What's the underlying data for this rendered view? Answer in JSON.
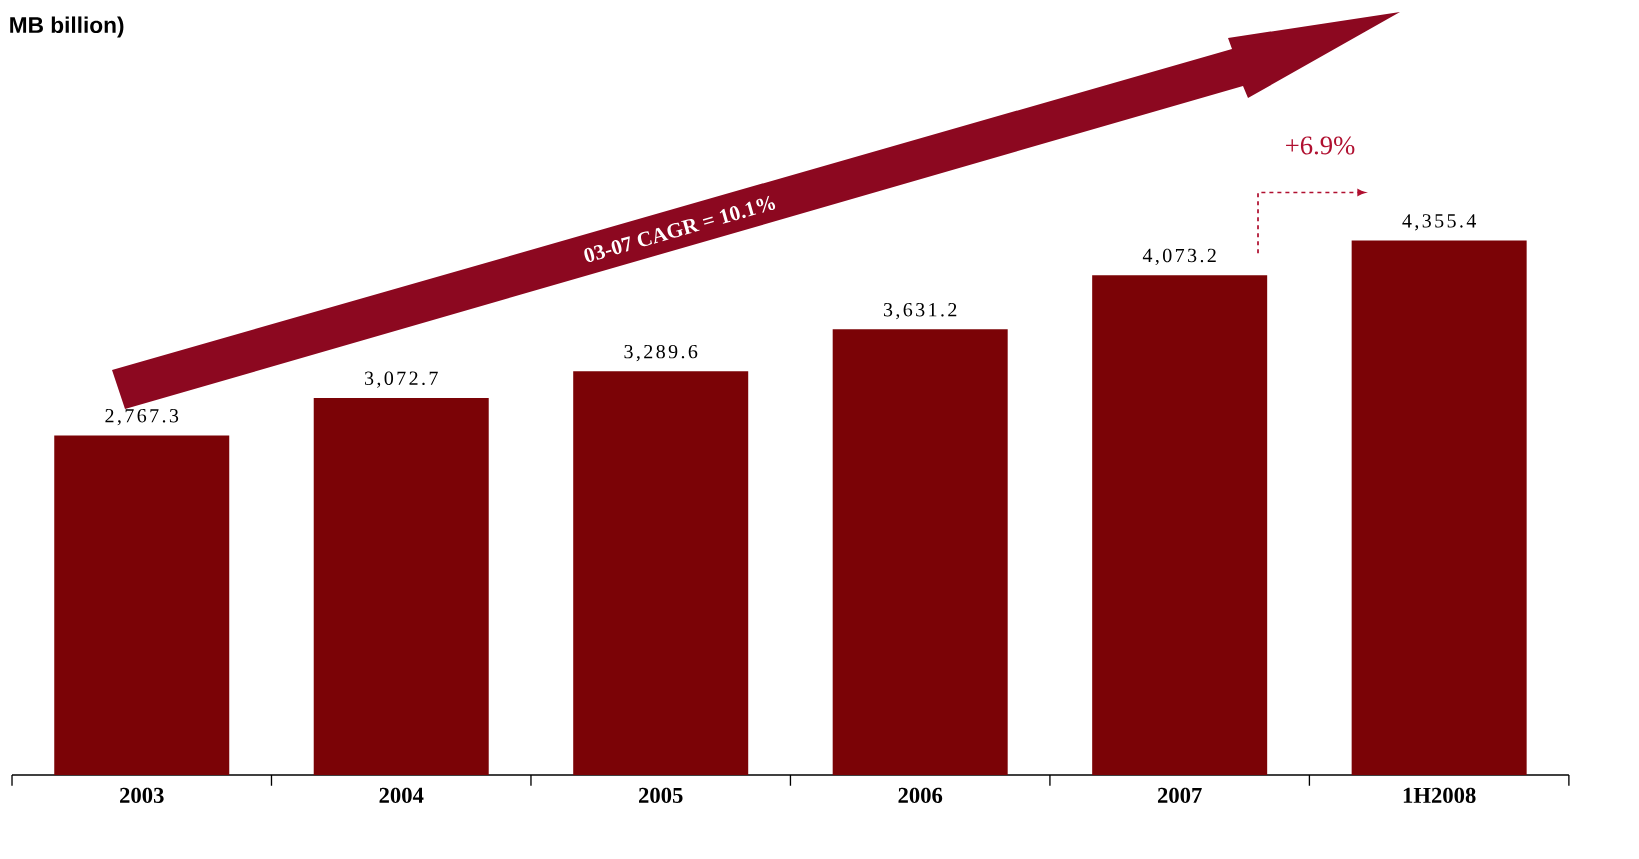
{
  "chart_data": {
    "type": "bar",
    "title": "MB billion)",
    "categories": [
      "2003",
      "2004",
      "2005",
      "2006",
      "2007",
      "1H2008"
    ],
    "values": [
      2767.3,
      3072.7,
      3289.6,
      3631.2,
      4073.2,
      4355.4
    ],
    "value_labels": [
      "2,767.3",
      "3,072.7",
      "3,289.6",
      "3,631.2",
      "4,073.2",
      "4,355.4"
    ],
    "color": "#7b0306",
    "annotations": [
      "03-07 CAGR = 10.1%",
      "+6.9%"
    ]
  }
}
